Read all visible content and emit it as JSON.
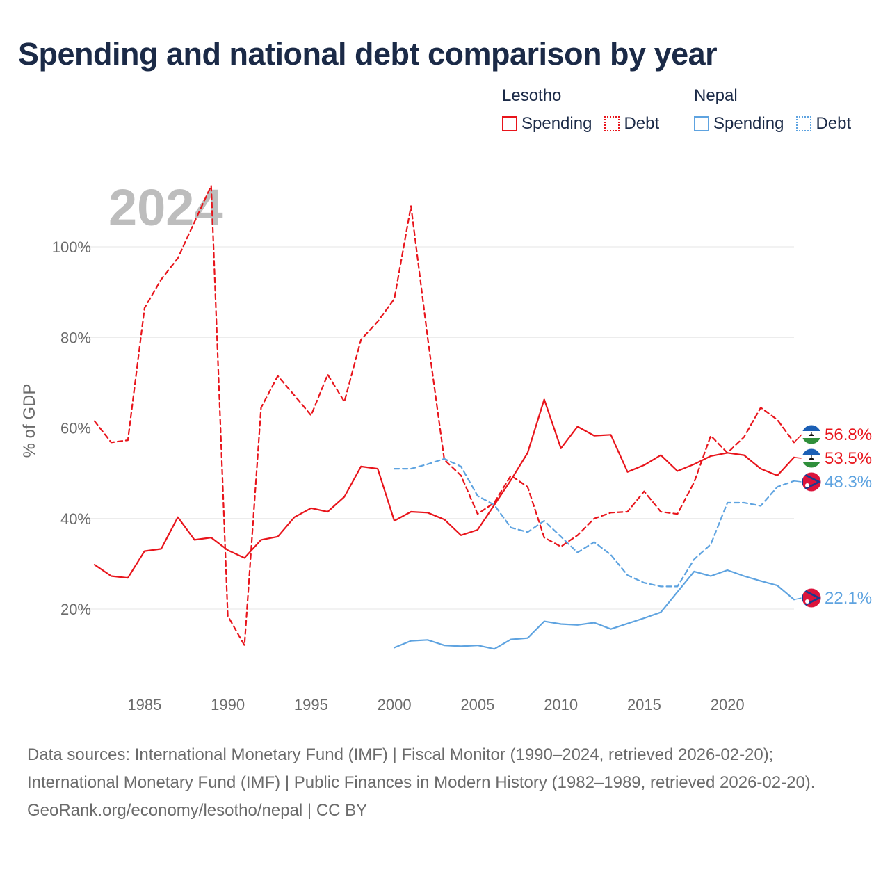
{
  "title": "Spending and national debt comparison by year",
  "legend": {
    "groups": [
      {
        "country": "Lesotho",
        "color": "#e8141b",
        "items": [
          {
            "label": "Spending",
            "style": "solid"
          },
          {
            "label": "Debt",
            "style": "dotted"
          }
        ]
      },
      {
        "country": "Nepal",
        "color": "#5ea3e0",
        "items": [
          {
            "label": "Spending",
            "style": "solid"
          },
          {
            "label": "Debt",
            "style": "dotted"
          }
        ]
      }
    ]
  },
  "chart_data": {
    "type": "line",
    "year_label": "2024",
    "ylabel": "% of GDP",
    "xlim": [
      1982,
      2024
    ],
    "ylim": [
      5,
      115
    ],
    "x_ticks": [
      1985,
      1990,
      1995,
      2000,
      2005,
      2010,
      2015,
      2020
    ],
    "y_ticks": [
      20,
      40,
      60,
      80,
      100
    ],
    "y_tick_labels": [
      "20%",
      "40%",
      "60%",
      "80%",
      "100%"
    ],
    "series": [
      {
        "name": "Lesotho Debt",
        "country": "Lesotho",
        "metric": "Debt",
        "color": "#e8141b",
        "dashed": true,
        "end_label": "56.8%",
        "flag": "lesotho-flag",
        "x": [
          1982,
          1983,
          1984,
          1985,
          1986,
          1987,
          1988,
          1989,
          1990,
          1991,
          1992,
          1993,
          1994,
          1995,
          1996,
          1997,
          1998,
          1999,
          2000,
          2001,
          2002,
          2003,
          2004,
          2005,
          2006,
          2007,
          2008,
          2009,
          2010,
          2011,
          2012,
          2013,
          2014,
          2015,
          2016,
          2017,
          2018,
          2019,
          2020,
          2021,
          2022,
          2023,
          2024
        ],
        "values": [
          61.5,
          56.8,
          57.3,
          86.5,
          92.8,
          97.5,
          105.5,
          113.5,
          18.5,
          12.0,
          64.5,
          71.5,
          67.2,
          62.8,
          71.8,
          65.8,
          79.5,
          83.5,
          88.5,
          109.0,
          80.0,
          53.0,
          49.5,
          41.0,
          43.5,
          49.5,
          47.0,
          35.8,
          33.8,
          36.3,
          40.0,
          41.3,
          41.5,
          46.0,
          41.5,
          41.0,
          48.0,
          58.3,
          54.5,
          58.0,
          64.5,
          61.8,
          56.8
        ]
      },
      {
        "name": "Lesotho Spending",
        "country": "Lesotho",
        "metric": "Spending",
        "color": "#e8141b",
        "dashed": false,
        "end_label": "53.5%",
        "flag": "lesotho-flag",
        "x": [
          1982,
          1983,
          1984,
          1985,
          1986,
          1987,
          1988,
          1989,
          1990,
          1991,
          1992,
          1993,
          1994,
          1995,
          1996,
          1997,
          1998,
          1999,
          2000,
          2001,
          2002,
          2003,
          2004,
          2005,
          2006,
          2007,
          2008,
          2009,
          2010,
          2011,
          2012,
          2013,
          2014,
          2015,
          2016,
          2017,
          2018,
          2019,
          2020,
          2021,
          2022,
          2023,
          2024
        ],
        "values": [
          29.8,
          27.3,
          26.9,
          32.8,
          33.3,
          40.3,
          35.3,
          35.8,
          33.0,
          31.3,
          35.3,
          36.0,
          40.3,
          42.3,
          41.5,
          44.8,
          51.5,
          51.0,
          39.5,
          41.5,
          41.3,
          39.8,
          36.3,
          37.5,
          43.0,
          48.5,
          54.5,
          66.3,
          55.5,
          60.3,
          58.3,
          58.5,
          50.3,
          51.8,
          54.0,
          50.5,
          52.0,
          53.8,
          54.5,
          54.0,
          51.0,
          49.5,
          53.5
        ]
      },
      {
        "name": "Nepal Debt",
        "country": "Nepal",
        "metric": "Debt",
        "color": "#5ea3e0",
        "dashed": true,
        "end_label": "48.3%",
        "flag": "nepal-flag",
        "x": [
          2000,
          2001,
          2002,
          2003,
          2004,
          2005,
          2006,
          2007,
          2008,
          2009,
          2010,
          2011,
          2012,
          2013,
          2014,
          2015,
          2016,
          2017,
          2018,
          2019,
          2020,
          2021,
          2022,
          2023,
          2024
        ],
        "values": [
          51.0,
          51.0,
          52.0,
          53.2,
          51.5,
          45.0,
          43.0,
          38.0,
          37.0,
          39.5,
          36.0,
          32.5,
          34.8,
          32.0,
          27.5,
          25.8,
          25.0,
          25.0,
          31.0,
          34.3,
          43.5,
          43.5,
          42.8,
          47.0,
          48.3
        ]
      },
      {
        "name": "Nepal Spending",
        "country": "Nepal",
        "metric": "Spending",
        "color": "#5ea3e0",
        "dashed": false,
        "end_label": "22.1%",
        "flag": "nepal-flag",
        "x": [
          2000,
          2001,
          2002,
          2003,
          2004,
          2005,
          2006,
          2007,
          2008,
          2009,
          2010,
          2011,
          2012,
          2013,
          2014,
          2015,
          2016,
          2017,
          2018,
          2019,
          2020,
          2021,
          2022,
          2023,
          2024
        ],
        "values": [
          11.5,
          13.0,
          13.2,
          12.0,
          11.8,
          12.0,
          11.2,
          13.3,
          13.6,
          17.3,
          16.7,
          16.5,
          17.0,
          15.6,
          16.8,
          18.0,
          19.3,
          23.8,
          28.3,
          27.3,
          28.6,
          27.3,
          26.2,
          25.2,
          22.1
        ]
      }
    ]
  },
  "footer": {
    "sources": "Data sources: International Monetary Fund (IMF) | Fiscal Monitor (1990–2024, retrieved 2026-02-20); International Monetary Fund (IMF) | Public Finances in Modern History (1982–1989, retrieved 2026-02-20).",
    "credit": "GeoRank.org/economy/lesotho/nepal | CC BY"
  }
}
